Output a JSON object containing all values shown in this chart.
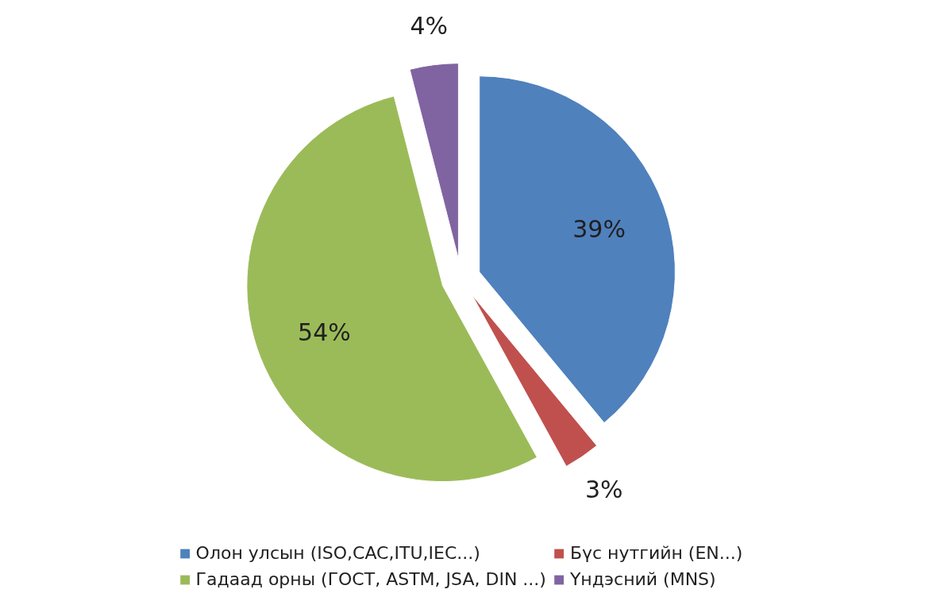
{
  "chart_data": {
    "type": "pie",
    "categories": [
      "Олон улсын (ISO,CAC,ITU,IEC...)",
      "Бүс нутгийн (EN...)",
      "Гадаад орны (ГОСТ, ASTM, JSA, DIN ...)",
      "Үндэсний (MNS)"
    ],
    "values": [
      39,
      3,
      54,
      4
    ],
    "colors": [
      "#4f81bd",
      "#c0504d",
      "#9bbb59",
      "#8064a2"
    ],
    "value_labels": [
      "39%",
      "3%",
      "54%",
      "4%"
    ],
    "legend": "bottom"
  }
}
